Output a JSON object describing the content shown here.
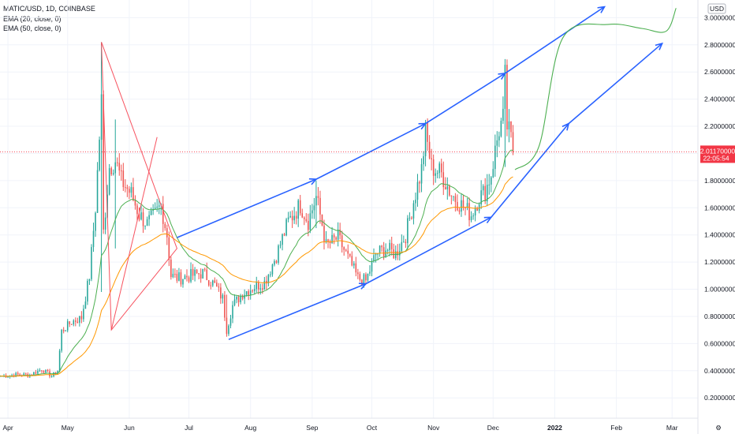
{
  "legend": {
    "symbol": "MATIC/USD, 1D, COINBASE",
    "ema20": "EMA (20, close, 0)",
    "ema50": "EMA (50, close, 0)"
  },
  "axis": {
    "currency": "USD",
    "last_price": "2.01170000",
    "countdown": "22:05:54"
  },
  "colors": {
    "up": "#26a69a",
    "down": "#ef5350",
    "ema20": "#4caf50",
    "ema50": "#ff9800",
    "channel": "#2962ff",
    "projection": "#4caf50",
    "last_price": "#f23645"
  },
  "chart_data": {
    "type": "candlestick",
    "y_ticks": [
      "0.20000000",
      "0.40000000",
      "0.60000000",
      "0.80000000",
      "1.00000000",
      "1.20000000",
      "1.40000000",
      "1.60000000",
      "1.80000000",
      "2.00000000",
      "2.20000000",
      "2.40000000",
      "2.60000000",
      "2.80000000",
      "3.00000000"
    ],
    "y_tick_values": [
      0.2,
      0.4,
      0.6,
      0.8,
      1.0,
      1.2,
      1.4,
      1.6,
      1.8,
      2.0,
      2.2,
      2.4,
      2.6,
      2.8,
      3.0
    ],
    "ylim": [
      0.05,
      3.13
    ],
    "x_ticks": [
      "Apr",
      "May",
      "Jun",
      "Jul",
      "Aug",
      "Sep",
      "Oct",
      "Nov",
      "Dec",
      "2022",
      "Feb",
      "Mar"
    ],
    "x_tick_dates": [
      "2021-04-01",
      "2021-05-01",
      "2021-06-01",
      "2021-07-01",
      "2021-08-01",
      "2021-09-01",
      "2021-10-01",
      "2021-11-01",
      "2021-12-01",
      "2022-01-01",
      "2022-02-01",
      "2022-03-01"
    ],
    "xlim": [
      "2021-03-28",
      "2022-03-14"
    ],
    "close_anchors": [
      [
        "2021-03-28",
        0.36
      ],
      [
        "2021-04-05",
        0.37
      ],
      [
        "2021-04-12",
        0.37
      ],
      [
        "2021-04-18",
        0.41
      ],
      [
        "2021-04-23",
        0.36
      ],
      [
        "2021-04-26",
        0.4
      ],
      [
        "2021-04-28",
        0.69
      ],
      [
        "2021-05-03",
        0.76
      ],
      [
        "2021-05-08",
        0.79
      ],
      [
        "2021-05-12",
        1.1
      ],
      [
        "2021-05-15",
        1.6
      ],
      [
        "2021-05-18",
        2.38
      ],
      [
        "2021-05-19",
        1.42
      ],
      [
        "2021-05-22",
        1.9
      ],
      [
        "2021-05-25",
        1.95
      ],
      [
        "2021-05-28",
        1.8
      ],
      [
        "2021-06-02",
        1.7
      ],
      [
        "2021-06-06",
        1.55
      ],
      [
        "2021-06-10",
        1.48
      ],
      [
        "2021-06-14",
        1.55
      ],
      [
        "2021-06-17",
        1.62
      ],
      [
        "2021-06-20",
        1.4
      ],
      [
        "2021-06-22",
        1.1
      ],
      [
        "2021-06-26",
        1.08
      ],
      [
        "2021-07-02",
        1.1
      ],
      [
        "2021-07-08",
        1.12
      ],
      [
        "2021-07-14",
        1.03
      ],
      [
        "2021-07-18",
        0.93
      ],
      [
        "2021-07-20",
        0.7
      ],
      [
        "2021-07-23",
        0.88
      ],
      [
        "2021-07-28",
        0.97
      ],
      [
        "2021-08-03",
        1.02
      ],
      [
        "2021-08-08",
        1.05
      ],
      [
        "2021-08-14",
        1.25
      ],
      [
        "2021-08-20",
        1.5
      ],
      [
        "2021-08-26",
        1.62
      ],
      [
        "2021-08-30",
        1.5
      ],
      [
        "2021-09-03",
        1.68
      ],
      [
        "2021-09-06",
        1.48
      ],
      [
        "2021-09-08",
        1.32
      ],
      [
        "2021-09-14",
        1.38
      ],
      [
        "2021-09-20",
        1.2
      ],
      [
        "2021-09-24",
        1.08
      ],
      [
        "2021-09-28",
        1.06
      ],
      [
        "2021-10-03",
        1.26
      ],
      [
        "2021-10-08",
        1.3
      ],
      [
        "2021-10-13",
        1.26
      ],
      [
        "2021-10-18",
        1.4
      ],
      [
        "2021-10-22",
        1.65
      ],
      [
        "2021-10-26",
        1.88
      ],
      [
        "2021-10-28",
        2.15
      ],
      [
        "2021-10-31",
        1.9
      ],
      [
        "2021-11-05",
        1.85
      ],
      [
        "2021-11-10",
        1.7
      ],
      [
        "2021-11-15",
        1.62
      ],
      [
        "2021-11-20",
        1.55
      ],
      [
        "2021-11-24",
        1.68
      ],
      [
        "2021-11-27",
        1.72
      ],
      [
        "2021-11-30",
        1.85
      ],
      [
        "2021-12-04",
        2.18
      ],
      [
        "2021-12-06",
        2.25
      ],
      [
        "2021-12-07",
        2.55
      ],
      [
        "2021-12-08",
        2.2
      ],
      [
        "2021-12-10",
        2.1
      ],
      [
        "2021-12-11",
        2.01
      ]
    ],
    "spikes": [
      [
        "2021-05-18",
        2.82,
        0.98
      ],
      [
        "2021-05-25",
        2.25,
        1.3
      ],
      [
        "2021-07-20",
        0.96,
        0.65
      ],
      [
        "2021-09-03",
        1.8,
        1.45
      ],
      [
        "2021-12-07",
        2.58,
        1.9
      ]
    ],
    "series": [
      {
        "name": "EMA (20, close, 0)",
        "period": 20
      },
      {
        "name": "EMA (50, close, 0)",
        "period": 50
      }
    ],
    "last_value": 2.0117,
    "annotations": {
      "triangle": [
        [
          "2021-05-18",
          2.82
        ],
        [
          "2021-06-25",
          1.3
        ],
        [
          "2021-05-23",
          0.7
        ],
        [
          "2021-06-15",
          2.12
        ]
      ],
      "upper_channel": [
        [
          "2021-06-25",
          1.38
        ],
        [
          "2021-09-03",
          1.81
        ],
        [
          "2021-10-28",
          2.22
        ],
        [
          "2021-12-07",
          2.59
        ],
        [
          "2022-01-26",
          3.08
        ]
      ],
      "lower_channel": [
        [
          "2021-07-21",
          0.63
        ],
        [
          "2021-09-28",
          1.04
        ],
        [
          "2021-11-30",
          1.53
        ],
        [
          "2022-01-08",
          2.22
        ],
        [
          "2022-02-24",
          2.81
        ]
      ],
      "projection": [
        [
          "2021-12-12",
          1.88
        ],
        [
          "2021-12-24",
          2.05
        ],
        [
          "2022-01-05",
          2.85
        ],
        [
          "2022-01-28",
          2.95
        ],
        [
          "2022-02-14",
          2.92
        ],
        [
          "2022-02-26",
          2.9
        ],
        [
          "2022-03-03",
          3.07
        ]
      ]
    }
  }
}
